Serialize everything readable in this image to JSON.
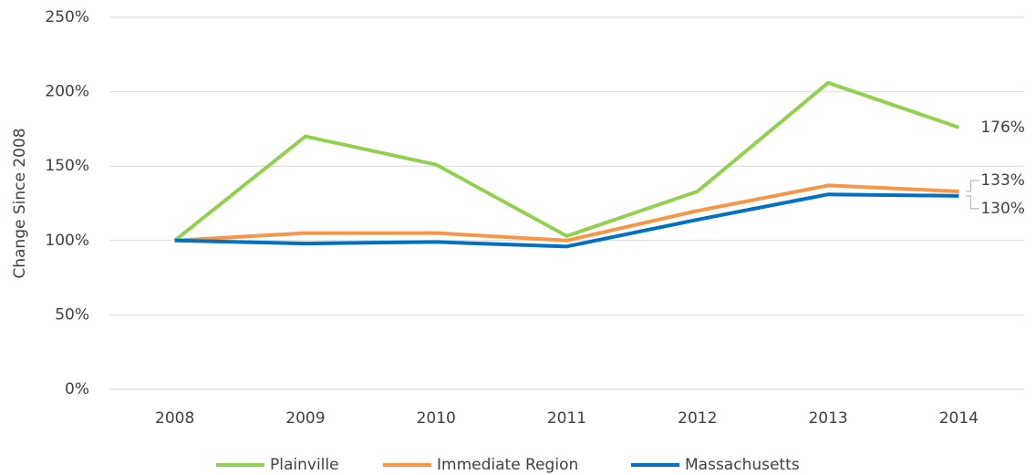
{
  "chart_data": {
    "type": "line",
    "y_label": "Change Since 2008",
    "categories": [
      "2008",
      "2009",
      "2010",
      "2011",
      "2012",
      "2013",
      "2014"
    ],
    "series": [
      {
        "name": "Plainville",
        "color": "#92d050",
        "values": [
          100,
          170,
          151,
          103,
          133,
          206,
          176
        ],
        "value_labels": [
          null,
          null,
          null,
          null,
          null,
          null,
          "176%"
        ]
      },
      {
        "name": "Immediate Region",
        "color": "#f79646",
        "values": [
          100,
          105,
          105,
          100,
          120,
          137,
          133
        ],
        "value_labels": [
          null,
          null,
          null,
          null,
          null,
          null,
          "133%"
        ]
      },
      {
        "name": "Massachusetts",
        "color": "#0070c0",
        "values": [
          100,
          98,
          99,
          96,
          114,
          131,
          130
        ],
        "value_labels": [
          null,
          null,
          null,
          null,
          null,
          null,
          "130%"
        ]
      }
    ],
    "ylim": [
      0,
      250
    ],
    "yticks": [
      {
        "value": 0,
        "label": "0%"
      },
      {
        "value": 50,
        "label": "50%"
      },
      {
        "value": 100,
        "label": "100%"
      },
      {
        "value": 150,
        "label": "150%"
      },
      {
        "value": 200,
        "label": "200%"
      },
      {
        "value": 250,
        "label": "250%"
      }
    ],
    "grid": true,
    "legend": "bottom"
  }
}
